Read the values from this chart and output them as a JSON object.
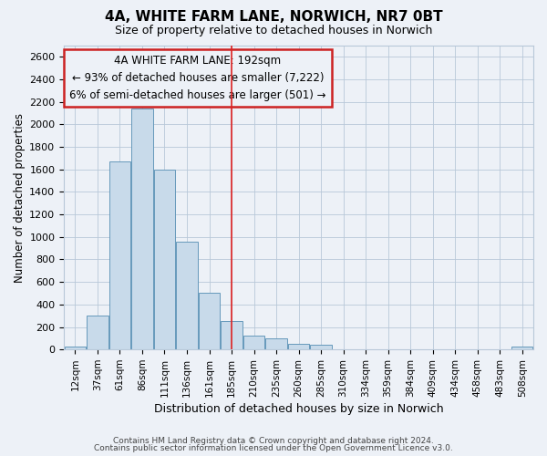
{
  "title1": "4A, WHITE FARM LANE, NORWICH, NR7 0BT",
  "title2": "Size of property relative to detached houses in Norwich",
  "xlabel": "Distribution of detached houses by size in Norwich",
  "ylabel": "Number of detached properties",
  "bar_color": "#c8daea",
  "bar_edge_color": "#6699bb",
  "vline_color": "#dd2222",
  "annotation_box_edgecolor": "#cc2222",
  "annotation_lines": [
    "4A WHITE FARM LANE: 192sqm",
    "← 93% of detached houses are smaller (7,222)",
    "6% of semi-detached houses are larger (501) →"
  ],
  "categories": [
    "12sqm",
    "37sqm",
    "61sqm",
    "86sqm",
    "111sqm",
    "136sqm",
    "161sqm",
    "185sqm",
    "210sqm",
    "235sqm",
    "260sqm",
    "285sqm",
    "310sqm",
    "334sqm",
    "359sqm",
    "384sqm",
    "409sqm",
    "434sqm",
    "458sqm",
    "483sqm",
    "508sqm"
  ],
  "values": [
    25,
    300,
    1670,
    2140,
    1600,
    960,
    505,
    255,
    120,
    100,
    50,
    45,
    5,
    5,
    5,
    5,
    5,
    5,
    5,
    5,
    25
  ],
  "ylim": [
    0,
    2700
  ],
  "yticks": [
    0,
    200,
    400,
    600,
    800,
    1000,
    1200,
    1400,
    1600,
    1800,
    2000,
    2200,
    2400,
    2600
  ],
  "vline_x_index": 7,
  "footer1": "Contains HM Land Registry data © Crown copyright and database right 2024.",
  "footer2": "Contains public sector information licensed under the Open Government Licence v3.0.",
  "bg_color": "#edf1f7",
  "grid_color": "#b8c8d8"
}
